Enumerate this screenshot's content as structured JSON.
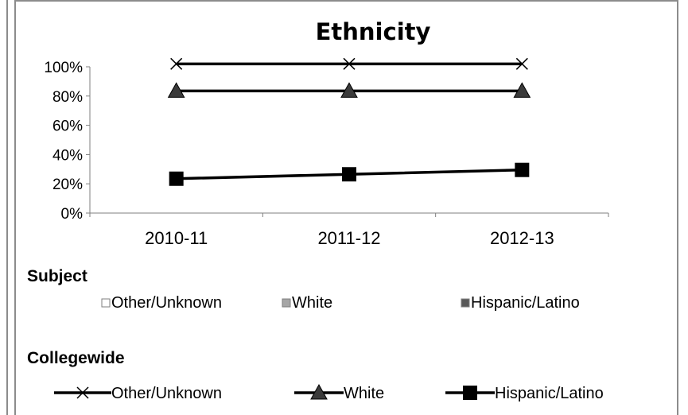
{
  "chart_data": {
    "type": "line",
    "title": "Ethnicity",
    "categories": [
      "2010-11",
      "2011-12",
      "2012-13"
    ],
    "ylim": [
      0,
      100
    ],
    "y_ticks": [
      "0%",
      "20%",
      "40%",
      "60%",
      "80%",
      "100%"
    ],
    "series": [
      {
        "name": "Other/Unknown",
        "marker": "x",
        "values": [
          102,
          102,
          102
        ]
      },
      {
        "name": "White",
        "marker": "triangle",
        "values": [
          83.5,
          83.5,
          83.5
        ]
      },
      {
        "name": "Hispanic/Latino",
        "marker": "square",
        "values": [
          23.5,
          26.5,
          29.5
        ]
      }
    ],
    "grid": false,
    "legend": {
      "subject_title": "Subject",
      "subject_items": [
        {
          "name": "Other/Unknown",
          "color": "#ffffff"
        },
        {
          "name": "White",
          "color": "#a6a6a6"
        },
        {
          "name": "Hispanic/Latino",
          "color": "#595959"
        }
      ],
      "collegewide_title": "Collegewide",
      "collegewide_items": [
        {
          "name": "Other/Unknown",
          "marker": "x"
        },
        {
          "name": "White",
          "marker": "triangle"
        },
        {
          "name": "Hispanic/Latino",
          "marker": "square"
        }
      ]
    }
  }
}
